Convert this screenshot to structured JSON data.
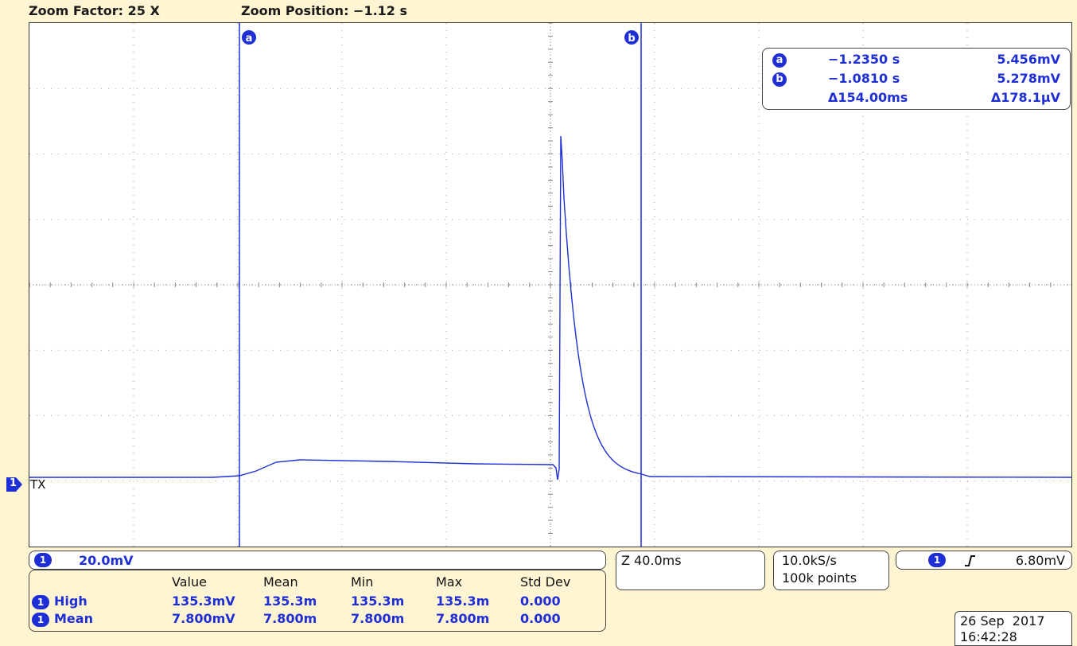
{
  "header": {
    "zoom_factor": "Zoom Factor: 25 X",
    "zoom_position": "Zoom Position: −1.12 s"
  },
  "cursors": {
    "a_label": "a",
    "b_label": "b",
    "readout": {
      "a_time": "−1.2350 s",
      "a_value": "5.456mV",
      "b_time": "−1.0810 s",
      "b_value": "5.278mV",
      "delta_time": "Δ154.00ms",
      "delta_value": "Δ178.1μV"
    }
  },
  "channel": {
    "number": "1",
    "label": "TX",
    "scale": "20.0mV"
  },
  "measurements": {
    "headers": [
      "Value",
      "Mean",
      "Min",
      "Max",
      "Std Dev"
    ],
    "rows": [
      {
        "name": "High",
        "values": [
          "135.3mV",
          "135.3m",
          "135.3m",
          "135.3m",
          "0.000"
        ]
      },
      {
        "name": "Mean",
        "values": [
          "7.800mV",
          "7.800m",
          "7.800m",
          "7.800m",
          "0.000"
        ]
      }
    ]
  },
  "horizontal": {
    "zoom_scale": "Z 40.0ms"
  },
  "acquisition": {
    "sample_rate": "10.0kS/s",
    "record_length": "100k points"
  },
  "trigger": {
    "channel": "1",
    "slope_icon": "rising-edge-icon",
    "level": "6.80mV"
  },
  "datetime": {
    "date": "26 Sep  2017",
    "time": "16:42:28"
  },
  "colors": {
    "trace": "#1f2fd6",
    "background": "#fff5d2",
    "grid": "#9a9a9a"
  }
}
